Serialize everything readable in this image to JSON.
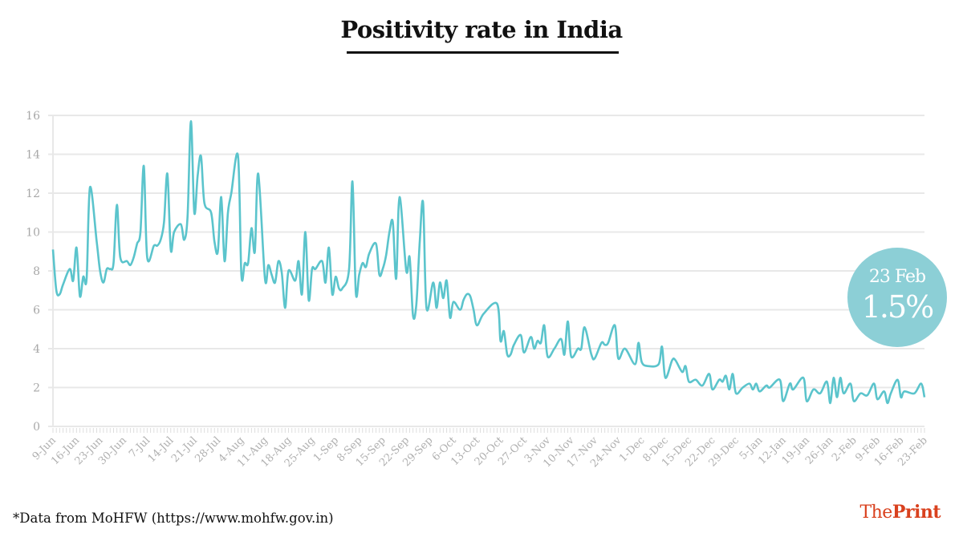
{
  "chart_data": {
    "type": "line",
    "title": "Positivity rate in India",
    "xlabel": "",
    "ylabel": "",
    "ylim": [
      0,
      16
    ],
    "yticks": [
      "0",
      "2",
      "4",
      "6",
      "8",
      "10",
      "12",
      "14",
      "16"
    ],
    "grid": true,
    "line_color": "#5bc4cc",
    "xticks": [
      "9-Jun",
      "16-Jun",
      "23-Jun",
      "30-Jun",
      "7-Jul",
      "14-Jul",
      "21-Jul",
      "28-Jul",
      "4-Aug",
      "11-Aug",
      "18-Aug",
      "25-Aug",
      "1-Sep",
      "8-Sep",
      "15-Sep",
      "22-Sep",
      "29-Sep",
      "6-Oct",
      "13-Oct",
      "20-Oct",
      "27-Oct",
      "3-Nov",
      "10-Nov",
      "17-Nov",
      "24-Nov",
      "1-Dec",
      "8-Dec",
      "15-Dec",
      "22-Dec",
      "29-Dec",
      "5-Jan",
      "12-Jan",
      "19-Jan",
      "26-Jan",
      "2-Feb",
      "9-Feb",
      "16-Feb",
      "23-Feb"
    ],
    "series": [
      {
        "points": [
          [
            "9-Jun",
            9.1
          ],
          [
            "10-Jun",
            7.0
          ],
          [
            "11-Jun",
            6.8
          ],
          [
            "12-Jun",
            7.3
          ],
          [
            "14-Jun",
            8.1
          ],
          [
            "15-Jun",
            7.5
          ],
          [
            "16-Jun",
            9.2
          ],
          [
            "17-Jun",
            6.7
          ],
          [
            "18-Jun",
            7.7
          ],
          [
            "19-Jun",
            7.6
          ],
          [
            "20-Jun",
            12.3
          ],
          [
            "22-Jun",
            9.5
          ],
          [
            "23-Jun",
            8.0
          ],
          [
            "24-Jun",
            7.4
          ],
          [
            "25-Jun",
            8.1
          ],
          [
            "26-Jun",
            8.1
          ],
          [
            "27-Jun",
            8.4
          ],
          [
            "28-Jun",
            11.4
          ],
          [
            "29-Jun",
            8.7
          ],
          [
            "1-Jul",
            8.5
          ],
          [
            "2-Jul",
            8.3
          ],
          [
            "3-Jul",
            8.7
          ],
          [
            "4-Jul",
            9.4
          ],
          [
            "5-Jul",
            10.0
          ],
          [
            "6-Jul",
            13.4
          ],
          [
            "7-Jul",
            8.7
          ],
          [
            "9-Jul",
            9.3
          ],
          [
            "10-Jul",
            9.3
          ],
          [
            "11-Jul",
            9.6
          ],
          [
            "12-Jul",
            10.5
          ],
          [
            "13-Jul",
            13.0
          ],
          [
            "14-Jul",
            9.1
          ],
          [
            "15-Jul",
            10.0
          ],
          [
            "17-Jul",
            10.4
          ],
          [
            "18-Jul",
            9.6
          ],
          [
            "19-Jul",
            10.8
          ],
          [
            "20-Jul",
            15.7
          ],
          [
            "21-Jul",
            11.0
          ],
          [
            "22-Jul",
            12.9
          ],
          [
            "23-Jul",
            13.9
          ],
          [
            "24-Jul",
            11.5
          ],
          [
            "26-Jul",
            11.0
          ],
          [
            "27-Jul",
            9.5
          ],
          [
            "28-Jul",
            9.0
          ],
          [
            "29-Jul",
            11.8
          ],
          [
            "30-Jul",
            8.5
          ],
          [
            "31-Jul",
            11.0
          ],
          [
            "1-Aug",
            12.0
          ],
          [
            "3-Aug",
            13.9
          ],
          [
            "4-Aug",
            7.8
          ],
          [
            "5-Aug",
            8.4
          ],
          [
            "6-Aug",
            8.4
          ],
          [
            "7-Aug",
            10.2
          ],
          [
            "8-Aug",
            9.0
          ],
          [
            "9-Aug",
            13.0
          ],
          [
            "11-Aug",
            7.6
          ],
          [
            "12-Aug",
            8.3
          ],
          [
            "13-Aug",
            7.8
          ],
          [
            "14-Aug",
            7.4
          ],
          [
            "15-Aug",
            8.5
          ],
          [
            "16-Aug",
            7.9
          ],
          [
            "17-Aug",
            6.1
          ],
          [
            "18-Aug",
            8.0
          ],
          [
            "20-Aug",
            7.5
          ],
          [
            "21-Aug",
            8.5
          ],
          [
            "22-Aug",
            6.8
          ],
          [
            "23-Aug",
            10.0
          ],
          [
            "24-Aug",
            6.5
          ],
          [
            "25-Aug",
            8.1
          ],
          [
            "26-Aug",
            8.1
          ],
          [
            "28-Aug",
            8.5
          ],
          [
            "29-Aug",
            7.4
          ],
          [
            "30-Aug",
            9.2
          ],
          [
            "31-Aug",
            6.8
          ],
          [
            "1-Sep",
            7.7
          ],
          [
            "2-Sep",
            7.1
          ],
          [
            "3-Sep",
            7.1
          ],
          [
            "5-Sep",
            8.1
          ],
          [
            "6-Sep",
            12.6
          ],
          [
            "7-Sep",
            6.9
          ],
          [
            "8-Sep",
            7.8
          ],
          [
            "9-Sep",
            8.4
          ],
          [
            "10-Sep",
            8.2
          ],
          [
            "11-Sep",
            8.9
          ],
          [
            "13-Sep",
            9.4
          ],
          [
            "14-Sep",
            7.8
          ],
          [
            "15-Sep",
            8.1
          ],
          [
            "16-Sep",
            8.8
          ],
          [
            "17-Sep",
            10.0
          ],
          [
            "18-Sep",
            10.5
          ],
          [
            "19-Sep",
            7.6
          ],
          [
            "20-Sep",
            11.8
          ],
          [
            "22-Sep",
            8.0
          ],
          [
            "23-Sep",
            8.7
          ],
          [
            "24-Sep",
            5.7
          ],
          [
            "25-Sep",
            6.3
          ],
          [
            "26-Sep",
            9.5
          ],
          [
            "27-Sep",
            11.5
          ],
          [
            "28-Sep",
            6.1
          ],
          [
            "30-Sep",
            7.4
          ],
          [
            "1-Oct",
            6.1
          ],
          [
            "2-Oct",
            7.4
          ],
          [
            "3-Oct",
            6.6
          ],
          [
            "4-Oct",
            7.5
          ],
          [
            "5-Oct",
            5.6
          ],
          [
            "6-Oct",
            6.4
          ],
          [
            "8-Oct",
            6.0
          ],
          [
            "9-Oct",
            6.5
          ],
          [
            "10-Oct",
            6.8
          ],
          [
            "11-Oct",
            6.7
          ],
          [
            "12-Oct",
            6.0
          ],
          [
            "13-Oct",
            5.2
          ],
          [
            "15-Oct",
            5.8
          ],
          [
            "19-Oct",
            6.3
          ],
          [
            "20-Oct",
            4.4
          ],
          [
            "21-Oct",
            4.9
          ],
          [
            "22-Oct",
            3.7
          ],
          [
            "23-Oct",
            3.7
          ],
          [
            "24-Oct",
            4.2
          ],
          [
            "26-Oct",
            4.7
          ],
          [
            "27-Oct",
            3.8
          ],
          [
            "29-Oct",
            4.6
          ],
          [
            "30-Oct",
            4.0
          ],
          [
            "31-Oct",
            4.4
          ],
          [
            "1-Nov",
            4.3
          ],
          [
            "2-Nov",
            5.2
          ],
          [
            "3-Nov",
            3.6
          ],
          [
            "5-Nov",
            4.0
          ],
          [
            "7-Nov",
            4.5
          ],
          [
            "8-Nov",
            3.7
          ],
          [
            "9-Nov",
            5.4
          ],
          [
            "10-Nov",
            3.6
          ],
          [
            "12-Nov",
            4.0
          ],
          [
            "13-Nov",
            4.0
          ],
          [
            "14-Nov",
            5.1
          ],
          [
            "16-Nov",
            3.7
          ],
          [
            "17-Nov",
            3.5
          ],
          [
            "19-Nov",
            4.3
          ],
          [
            "20-Nov",
            4.2
          ],
          [
            "21-Nov",
            4.3
          ],
          [
            "23-Nov",
            5.2
          ],
          [
            "24-Nov",
            3.5
          ],
          [
            "26-Nov",
            4.0
          ],
          [
            "29-Nov",
            3.2
          ],
          [
            "30-Nov",
            4.3
          ],
          [
            "1-Dec",
            3.3
          ],
          [
            "3-Dec",
            3.1
          ],
          [
            "6-Dec",
            3.2
          ],
          [
            "7-Dec",
            4.1
          ],
          [
            "8-Dec",
            2.5
          ],
          [
            "10-Dec",
            3.4
          ],
          [
            "11-Dec",
            3.4
          ],
          [
            "13-Dec",
            2.8
          ],
          [
            "14-Dec",
            3.1
          ],
          [
            "15-Dec",
            2.3
          ],
          [
            "17-Dec",
            2.4
          ],
          [
            "19-Dec",
            2.1
          ],
          [
            "21-Dec",
            2.7
          ],
          [
            "22-Dec",
            1.9
          ],
          [
            "24-Dec",
            2.4
          ],
          [
            "25-Dec",
            2.3
          ],
          [
            "26-Dec",
            2.6
          ],
          [
            "27-Dec",
            1.9
          ],
          [
            "28-Dec",
            2.7
          ],
          [
            "29-Dec",
            1.7
          ],
          [
            "31-Dec",
            2.0
          ],
          [
            "2-Jan",
            2.2
          ],
          [
            "3-Jan",
            1.9
          ],
          [
            "4-Jan",
            2.2
          ],
          [
            "5-Jan",
            1.8
          ],
          [
            "7-Jan",
            2.1
          ],
          [
            "8-Jan",
            2.0
          ],
          [
            "11-Jan",
            2.4
          ],
          [
            "12-Jan",
            1.3
          ],
          [
            "14-Jan",
            2.2
          ],
          [
            "15-Jan",
            1.9
          ],
          [
            "18-Jan",
            2.5
          ],
          [
            "19-Jan",
            1.3
          ],
          [
            "21-Jan",
            1.9
          ],
          [
            "23-Jan",
            1.7
          ],
          [
            "25-Jan",
            2.3
          ],
          [
            "26-Jan",
            1.2
          ],
          [
            "27-Jan",
            2.5
          ],
          [
            "28-Jan",
            1.5
          ],
          [
            "29-Jan",
            2.5
          ],
          [
            "30-Jan",
            1.7
          ],
          [
            "1-Feb",
            2.2
          ],
          [
            "2-Feb",
            1.3
          ],
          [
            "4-Feb",
            1.7
          ],
          [
            "6-Feb",
            1.6
          ],
          [
            "8-Feb",
            2.2
          ],
          [
            "9-Feb",
            1.4
          ],
          [
            "11-Feb",
            1.8
          ],
          [
            "12-Feb",
            1.2
          ],
          [
            "13-Feb",
            1.7
          ],
          [
            "15-Feb",
            2.4
          ],
          [
            "16-Feb",
            1.5
          ],
          [
            "17-Feb",
            1.8
          ],
          [
            "20-Feb",
            1.7
          ],
          [
            "22-Feb",
            2.2
          ],
          [
            "23-Feb",
            1.5
          ]
        ]
      }
    ],
    "annotation": {
      "date": "23 Feb",
      "value": "1.5%",
      "color": "#8ccfd6"
    }
  },
  "footnote": "*Data from MoHFW (https://www.mohfw.gov.in)",
  "logo": {
    "part1": "The",
    "part2": "Print",
    "color": "#d9411e"
  }
}
